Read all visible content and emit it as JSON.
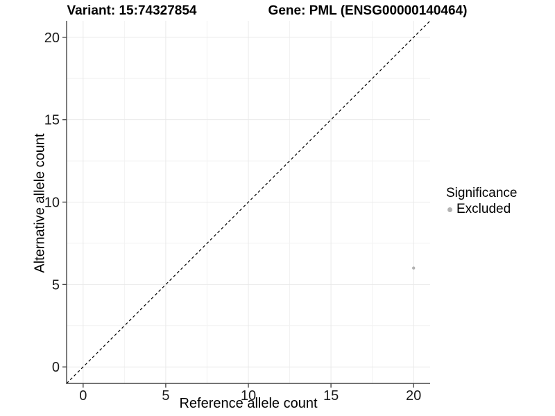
{
  "header": {
    "variant_title": "Variant: 15:74327854",
    "gene_title": "Gene: PML (ENSG00000140464)"
  },
  "legend": {
    "title": "Significance",
    "items": [
      {
        "label": "Excluded",
        "color": "#b2b2b2"
      }
    ]
  },
  "colors": {
    "background": "#ffffff",
    "axis_line": "#464646",
    "tick_label": "#1a1a1a",
    "grid_major": "#e9e9e9",
    "grid_minor": "#f2f2f2",
    "dashed_line": "#000000",
    "point": "#b2b2b2"
  },
  "chart_data": {
    "type": "scatter",
    "title": "Variant: 15:74327854 — Gene: PML (ENSG00000140464)",
    "xlabel": "Reference allele count",
    "ylabel": "Alternative allele count",
    "xlim": [
      -1,
      21
    ],
    "ylim": [
      -1,
      21
    ],
    "x_ticks": [
      0,
      5,
      10,
      15,
      20
    ],
    "y_ticks": [
      0,
      5,
      10,
      15,
      20
    ],
    "x_minor_ticks": [
      2.5,
      7.5,
      12.5,
      17.5
    ],
    "y_minor_ticks": [
      2.5,
      7.5,
      12.5,
      17.5
    ],
    "grid": "on",
    "legend_position": "right",
    "series": [
      {
        "name": "Excluded",
        "color": "#b2b2b2",
        "points": [
          {
            "x": 20,
            "y": 6
          }
        ]
      }
    ],
    "reference_line": {
      "equation": "y = x",
      "style": "dashed",
      "color": "#000000",
      "from": [
        -1,
        -1
      ],
      "to": [
        21,
        21
      ]
    }
  }
}
